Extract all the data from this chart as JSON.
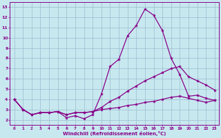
{
  "xlabel": "Windchill (Refroidissement éolien,°C)",
  "x": [
    0,
    1,
    2,
    3,
    4,
    5,
    6,
    7,
    8,
    9,
    10,
    11,
    12,
    13,
    14,
    15,
    16,
    17,
    18,
    19,
    20,
    21,
    22,
    23
  ],
  "line1": [
    4.0,
    3.0,
    2.5,
    2.7,
    2.7,
    2.8,
    2.2,
    2.4,
    2.1,
    2.5,
    4.5,
    7.2,
    7.9,
    10.2,
    11.2,
    12.8,
    12.2,
    10.7,
    8.0,
    6.4,
    4.3,
    4.4,
    4.1,
    3.9
  ],
  "line2": [
    4.0,
    3.0,
    2.5,
    2.7,
    2.7,
    2.8,
    2.5,
    2.7,
    2.7,
    2.8,
    3.2,
    3.8,
    4.2,
    4.8,
    5.3,
    5.8,
    6.2,
    6.6,
    7.0,
    7.2,
    6.2,
    5.8,
    5.4,
    4.9
  ],
  "line3": [
    4.0,
    3.0,
    2.5,
    2.7,
    2.7,
    2.8,
    2.5,
    2.7,
    2.7,
    2.8,
    3.0,
    3.1,
    3.2,
    3.4,
    3.5,
    3.7,
    3.8,
    4.0,
    4.2,
    4.3,
    4.1,
    3.9,
    3.7,
    3.9
  ],
  "line_color": "#880088",
  "bg_color": "#c8e8f0",
  "plot_bg": "#c8e8f0",
  "grid_color": "#99bbcc",
  "ylim": [
    1.5,
    13.5
  ],
  "xlim": [
    -0.5,
    23.5
  ],
  "yticks": [
    2,
    3,
    4,
    5,
    6,
    7,
    8,
    9,
    10,
    11,
    12,
    13
  ],
  "xticks": [
    0,
    1,
    2,
    3,
    4,
    5,
    6,
    7,
    8,
    9,
    10,
    11,
    12,
    13,
    14,
    15,
    16,
    17,
    18,
    19,
    20,
    21,
    22,
    23
  ]
}
